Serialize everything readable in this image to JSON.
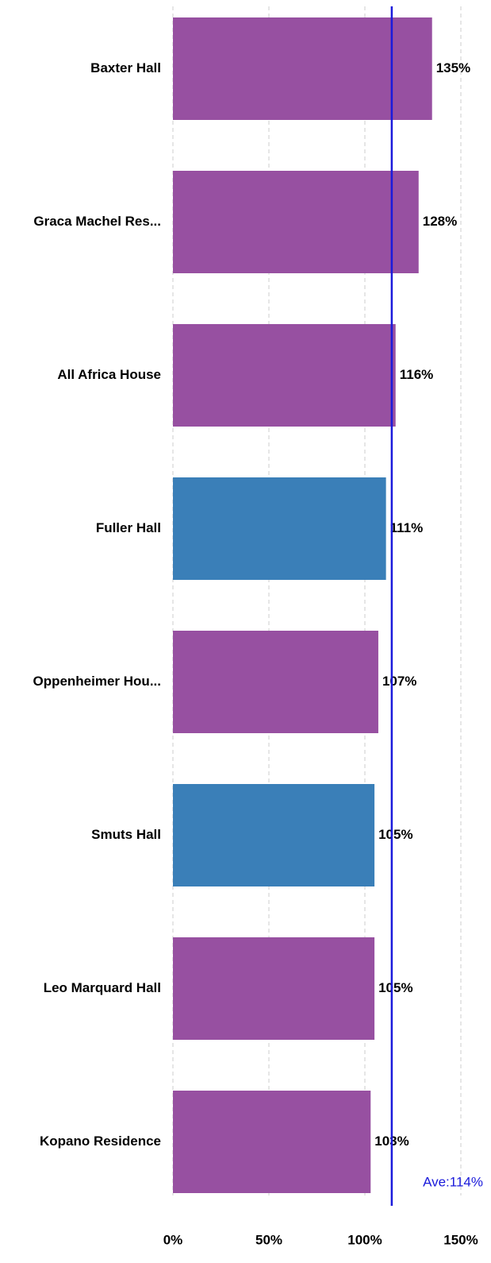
{
  "chart_data": {
    "type": "bar",
    "orientation": "horizontal",
    "categories": [
      "Baxter Hall",
      "Graca Machel Res...",
      "All Africa House",
      "Fuller Hall",
      "Oppenheimer Hou...",
      "Smuts Hall",
      "Leo Marquard Hall",
      "Kopano Residence"
    ],
    "values": [
      135,
      128,
      116,
      111,
      107,
      105,
      105,
      103
    ],
    "value_labels": [
      "135%",
      "128%",
      "116%",
      "111%",
      "107%",
      "105%",
      "105%",
      "103%"
    ],
    "colors": [
      "#9750a1",
      "#9750a1",
      "#9750a1",
      "#3a7fb8",
      "#9750a1",
      "#3a7fb8",
      "#9750a1",
      "#9750a1"
    ],
    "xlim": [
      0,
      150
    ],
    "xticks": [
      {
        "value": 0,
        "label": "0%"
      },
      {
        "value": 50,
        "label": "50%"
      },
      {
        "value": 100,
        "label": "100%"
      },
      {
        "value": 150,
        "label": "150%"
      }
    ],
    "grid": true,
    "average": {
      "value": 114,
      "label": "Ave:114%",
      "color": "#1a1adb"
    }
  }
}
